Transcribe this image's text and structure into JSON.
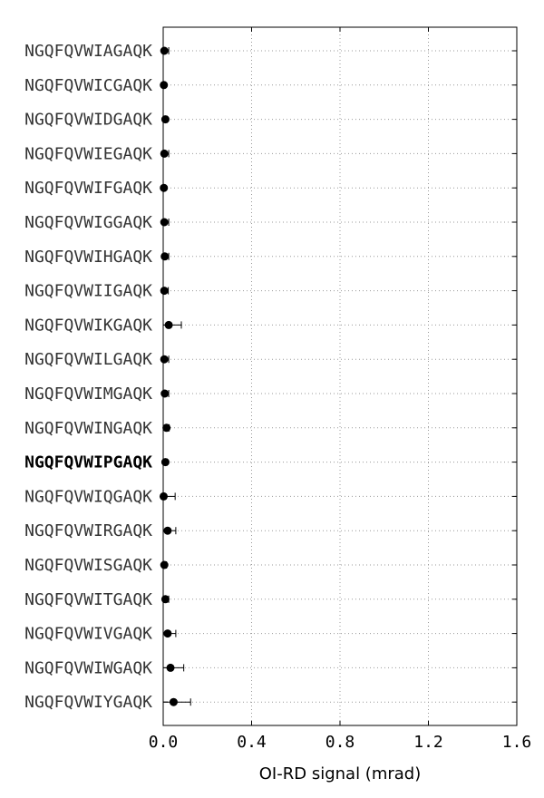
{
  "chart_data": {
    "type": "scatter",
    "orientation": "horizontal",
    "xlabel": "OI-RD signal (mrad)",
    "ylabel": "",
    "title": "",
    "xlim": [
      0.0,
      1.6
    ],
    "x_ticks": [
      0.0,
      0.4,
      0.8,
      1.2,
      1.6
    ],
    "x_tick_labels": [
      "0.0",
      "0.4",
      "0.8",
      "1.2",
      "1.6"
    ],
    "grid": true,
    "highlighted_category": "NGQFQVWIPGAQK",
    "categories": [
      "NGQFQVWIAGAQK",
      "NGQFQVWICGAQK",
      "NGQFQVWIDGAQK",
      "NGQFQVWIEGAQK",
      "NGQFQVWIFGAQK",
      "NGQFQVWIGGAQK",
      "NGQFQVWIHGAQK",
      "NGQFQVWIIGAQK",
      "NGQFQVWIKGAQK",
      "NGQFQVWILGAQK",
      "NGQFQVWIMGAQK",
      "NGQFQVWINGAQK",
      "NGQFQVWIPGAQK",
      "NGQFQVWIQGAQK",
      "NGQFQVWIRGAQK",
      "NGQFQVWISGAQK",
      "NGQFQVWITGAQK",
      "NGQFQVWIVGAQK",
      "NGQFQVWIWGAQK",
      "NGQFQVWIYGAQK"
    ],
    "values": [
      0.005,
      0.003,
      0.01,
      0.005,
      0.003,
      0.005,
      0.007,
      0.005,
      0.025,
      0.005,
      0.007,
      0.015,
      0.01,
      0.002,
      0.02,
      0.005,
      0.01,
      0.02,
      0.033,
      0.047
    ],
    "errors": [
      0.02,
      0.005,
      0.008,
      0.02,
      0.005,
      0.02,
      0.018,
      0.018,
      0.057,
      0.02,
      0.018,
      0.012,
      0.008,
      0.052,
      0.037,
      0.01,
      0.015,
      0.037,
      0.06,
      0.077
    ],
    "marker_color": "#000000"
  }
}
